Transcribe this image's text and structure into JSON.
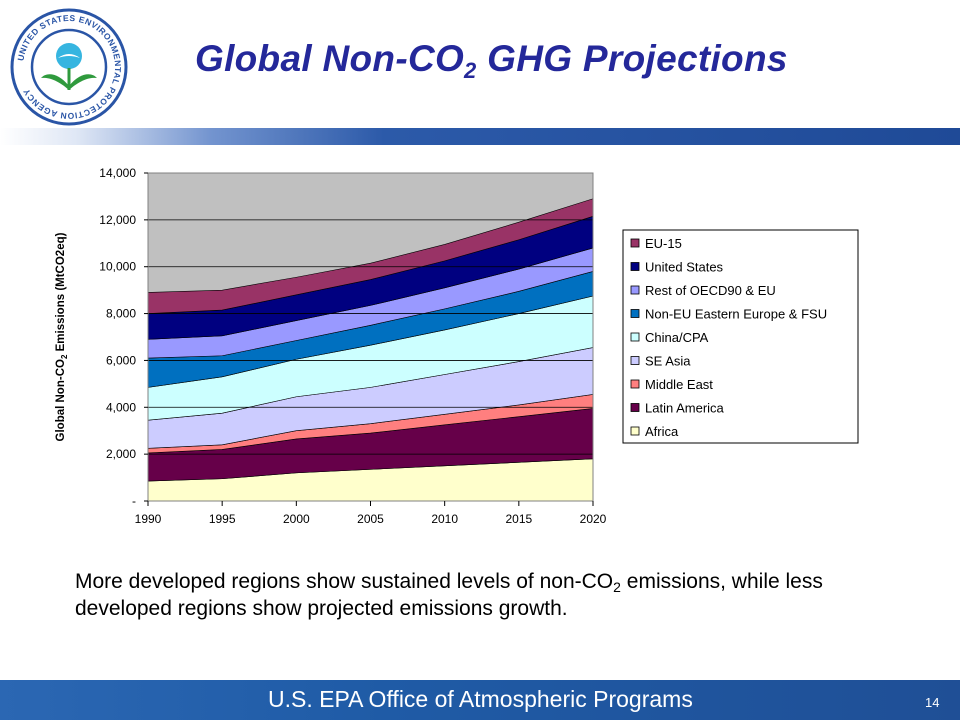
{
  "agency_seal_text": "UNITED STATES ENVIRONMENTAL PROTECTION AGENCY",
  "title": {
    "main": "Global Non-CO",
    "sub": "2",
    "rest": " GHG Projections"
  },
  "caption": {
    "part1": "More developed regions show sustained levels of non-CO",
    "sub": "2",
    "part2": " emissions, while less developed regions show projected emissions growth."
  },
  "footer": {
    "text": "U.S. EPA Office of Atmospheric Programs",
    "page_number": "14"
  },
  "chart_data": {
    "type": "area",
    "stacked": true,
    "title": "",
    "xlabel": "",
    "ylabel_parts": [
      "Global Non-CO",
      "2",
      " Emissions (MtCO2eq)"
    ],
    "x": [
      1990,
      1995,
      2000,
      2005,
      2010,
      2015,
      2020
    ],
    "x_tick_labels": [
      "1990",
      "1995",
      "2000",
      "2005",
      "2010",
      "2015",
      "2020"
    ],
    "y_ticks": [
      {
        "value": 0,
        "label": "-"
      },
      {
        "value": 2000,
        "label": "2,000"
      },
      {
        "value": 4000,
        "label": "4,000"
      },
      {
        "value": 6000,
        "label": "6,000"
      },
      {
        "value": 8000,
        "label": "8,000"
      },
      {
        "value": 10000,
        "label": "10,000"
      },
      {
        "value": 12000,
        "label": "12,000"
      },
      {
        "value": 14000,
        "label": "14,000"
      }
    ],
    "ylim": [
      0,
      14000
    ],
    "grid": "horizontal",
    "legend_position": "right",
    "plot_background": "#c0c0c0",
    "series": [
      {
        "name": "Africa",
        "color": "#ffffcc",
        "values": [
          850,
          950,
          1200,
          1350,
          1500,
          1650,
          1800
        ]
      },
      {
        "name": "Latin America",
        "color": "#660049",
        "values": [
          1200,
          1250,
          1450,
          1550,
          1750,
          1950,
          2150
        ]
      },
      {
        "name": "Middle East",
        "color": "#ff7f7f",
        "values": [
          200,
          200,
          350,
          400,
          450,
          500,
          600
        ]
      },
      {
        "name": "SE Asia",
        "color": "#ccccff",
        "values": [
          1200,
          1350,
          1450,
          1550,
          1700,
          1850,
          2000
        ]
      },
      {
        "name": "China/CPA",
        "color": "#ccffff",
        "values": [
          1400,
          1550,
          1600,
          1800,
          1900,
          2050,
          2200
        ]
      },
      {
        "name": "Non-EU Eastern Europe & FSU",
        "color": "#0070c0",
        "values": [
          1250,
          900,
          800,
          850,
          900,
          950,
          1050
        ]
      },
      {
        "name": "Rest of OECD90 & EU",
        "color": "#9999ff",
        "values": [
          800,
          850,
          850,
          850,
          900,
          950,
          1000
        ]
      },
      {
        "name": "United States",
        "color": "#000080",
        "values": [
          1100,
          1100,
          1100,
          1100,
          1150,
          1250,
          1350
        ]
      },
      {
        "name": "EU-15",
        "color": "#993366",
        "values": [
          900,
          850,
          750,
          700,
          700,
          750,
          750
        ]
      }
    ]
  }
}
